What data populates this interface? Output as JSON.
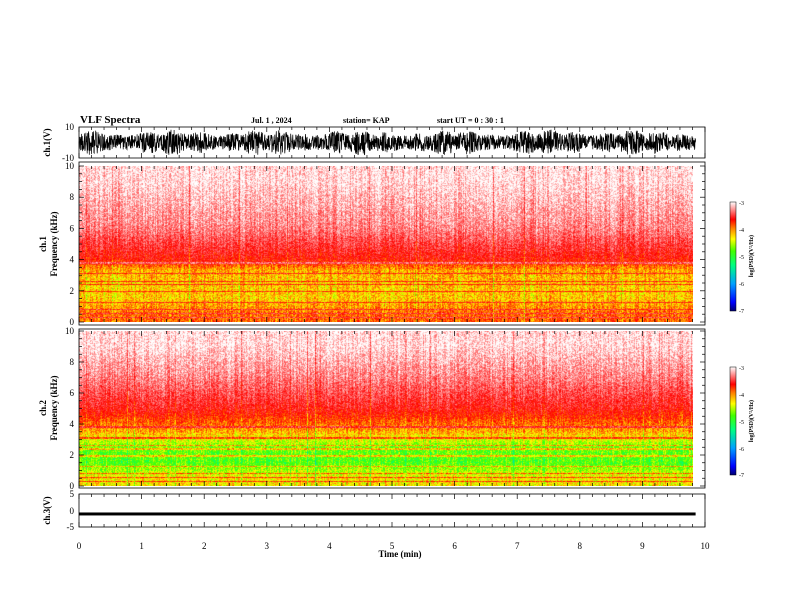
{
  "header": {
    "title": "VLF Spectra",
    "date": "Jul. 1 , 2024",
    "station": "station= KAP",
    "start_time": "start UT =  0 : 30 : 1"
  },
  "colors": {
    "spectro_low": "#0000c8",
    "spectro_mid": "#00e000",
    "spectro_high": "#ff0000",
    "waveform": "#000000"
  },
  "chart_data": [
    {
      "type": "line",
      "name": "waveform-ch1",
      "ylabel": "ch.1(V)",
      "ylim": [
        -10,
        10
      ],
      "yticks": [
        "10",
        "-10"
      ],
      "xlim": [
        0,
        10
      ],
      "note": "dense full-scale noise waveform"
    },
    {
      "type": "heatmap",
      "name": "spectrogram-ch1",
      "ylabel": "ch.1\nFrequency (kHz)",
      "ylabel_lines": [
        "ch.1",
        "Frequency (kHz)"
      ],
      "ylim": [
        0,
        10
      ],
      "yticks": [
        "0",
        "2",
        "4",
        "6",
        "8",
        "10"
      ],
      "xlim": [
        0,
        9.85
      ],
      "colorbar": {
        "label": "log(PSD)(V²/Hz)",
        "range": [
          -7,
          -3
        ],
        "ticks": [
          "-3",
          "-4",
          "-5",
          "-6",
          "-7"
        ]
      },
      "profile": [
        {
          "freq_khz": 0.5,
          "log_psd": -4.2
        },
        {
          "freq_khz": 1.5,
          "log_psd": -4.5
        },
        {
          "freq_khz": 2.5,
          "log_psd": -4.5
        },
        {
          "freq_khz": 3.3,
          "log_psd": -4.4
        },
        {
          "freq_khz": 4.0,
          "log_psd": -3.9
        },
        {
          "freq_khz": 6.0,
          "log_psd": -3.4
        },
        {
          "freq_khz": 9.0,
          "log_psd": -3.1
        }
      ]
    },
    {
      "type": "heatmap",
      "name": "spectrogram-ch2",
      "ylabel_lines": [
        "ch.2",
        "Frequency (kHz)"
      ],
      "ylim": [
        0,
        10
      ],
      "yticks": [
        "0",
        "2",
        "4",
        "6",
        "8",
        "10"
      ],
      "xlim": [
        0,
        9.85
      ],
      "colorbar": {
        "label": "log(PSD)(V²/Hz)",
        "range": [
          -7,
          -3
        ],
        "ticks": [
          "-3",
          "-4",
          "-5",
          "-6",
          "-7"
        ]
      },
      "profile": [
        {
          "freq_khz": 0.5,
          "log_psd": -4.6
        },
        {
          "freq_khz": 1.5,
          "log_psd": -5.1
        },
        {
          "freq_khz": 2.5,
          "log_psd": -5.0
        },
        {
          "freq_khz": 3.5,
          "log_psd": -4.4
        },
        {
          "freq_khz": 5.0,
          "log_psd": -3.8
        },
        {
          "freq_khz": 7.0,
          "log_psd": -3.4
        },
        {
          "freq_khz": 9.0,
          "log_psd": -3.1
        }
      ]
    },
    {
      "type": "line",
      "name": "waveform-ch3",
      "ylabel": "ch.3(V)",
      "ylim": [
        -5,
        5
      ],
      "yticks": [
        "5",
        "0",
        "-5"
      ],
      "xlim": [
        0,
        10
      ],
      "note": "nearly constant at about -1 V"
    }
  ],
  "xaxis": {
    "label": "Time (min)",
    "ticks": [
      "0",
      "1",
      "2",
      "3",
      "4",
      "5",
      "6",
      "7",
      "8",
      "9",
      "10"
    ]
  }
}
